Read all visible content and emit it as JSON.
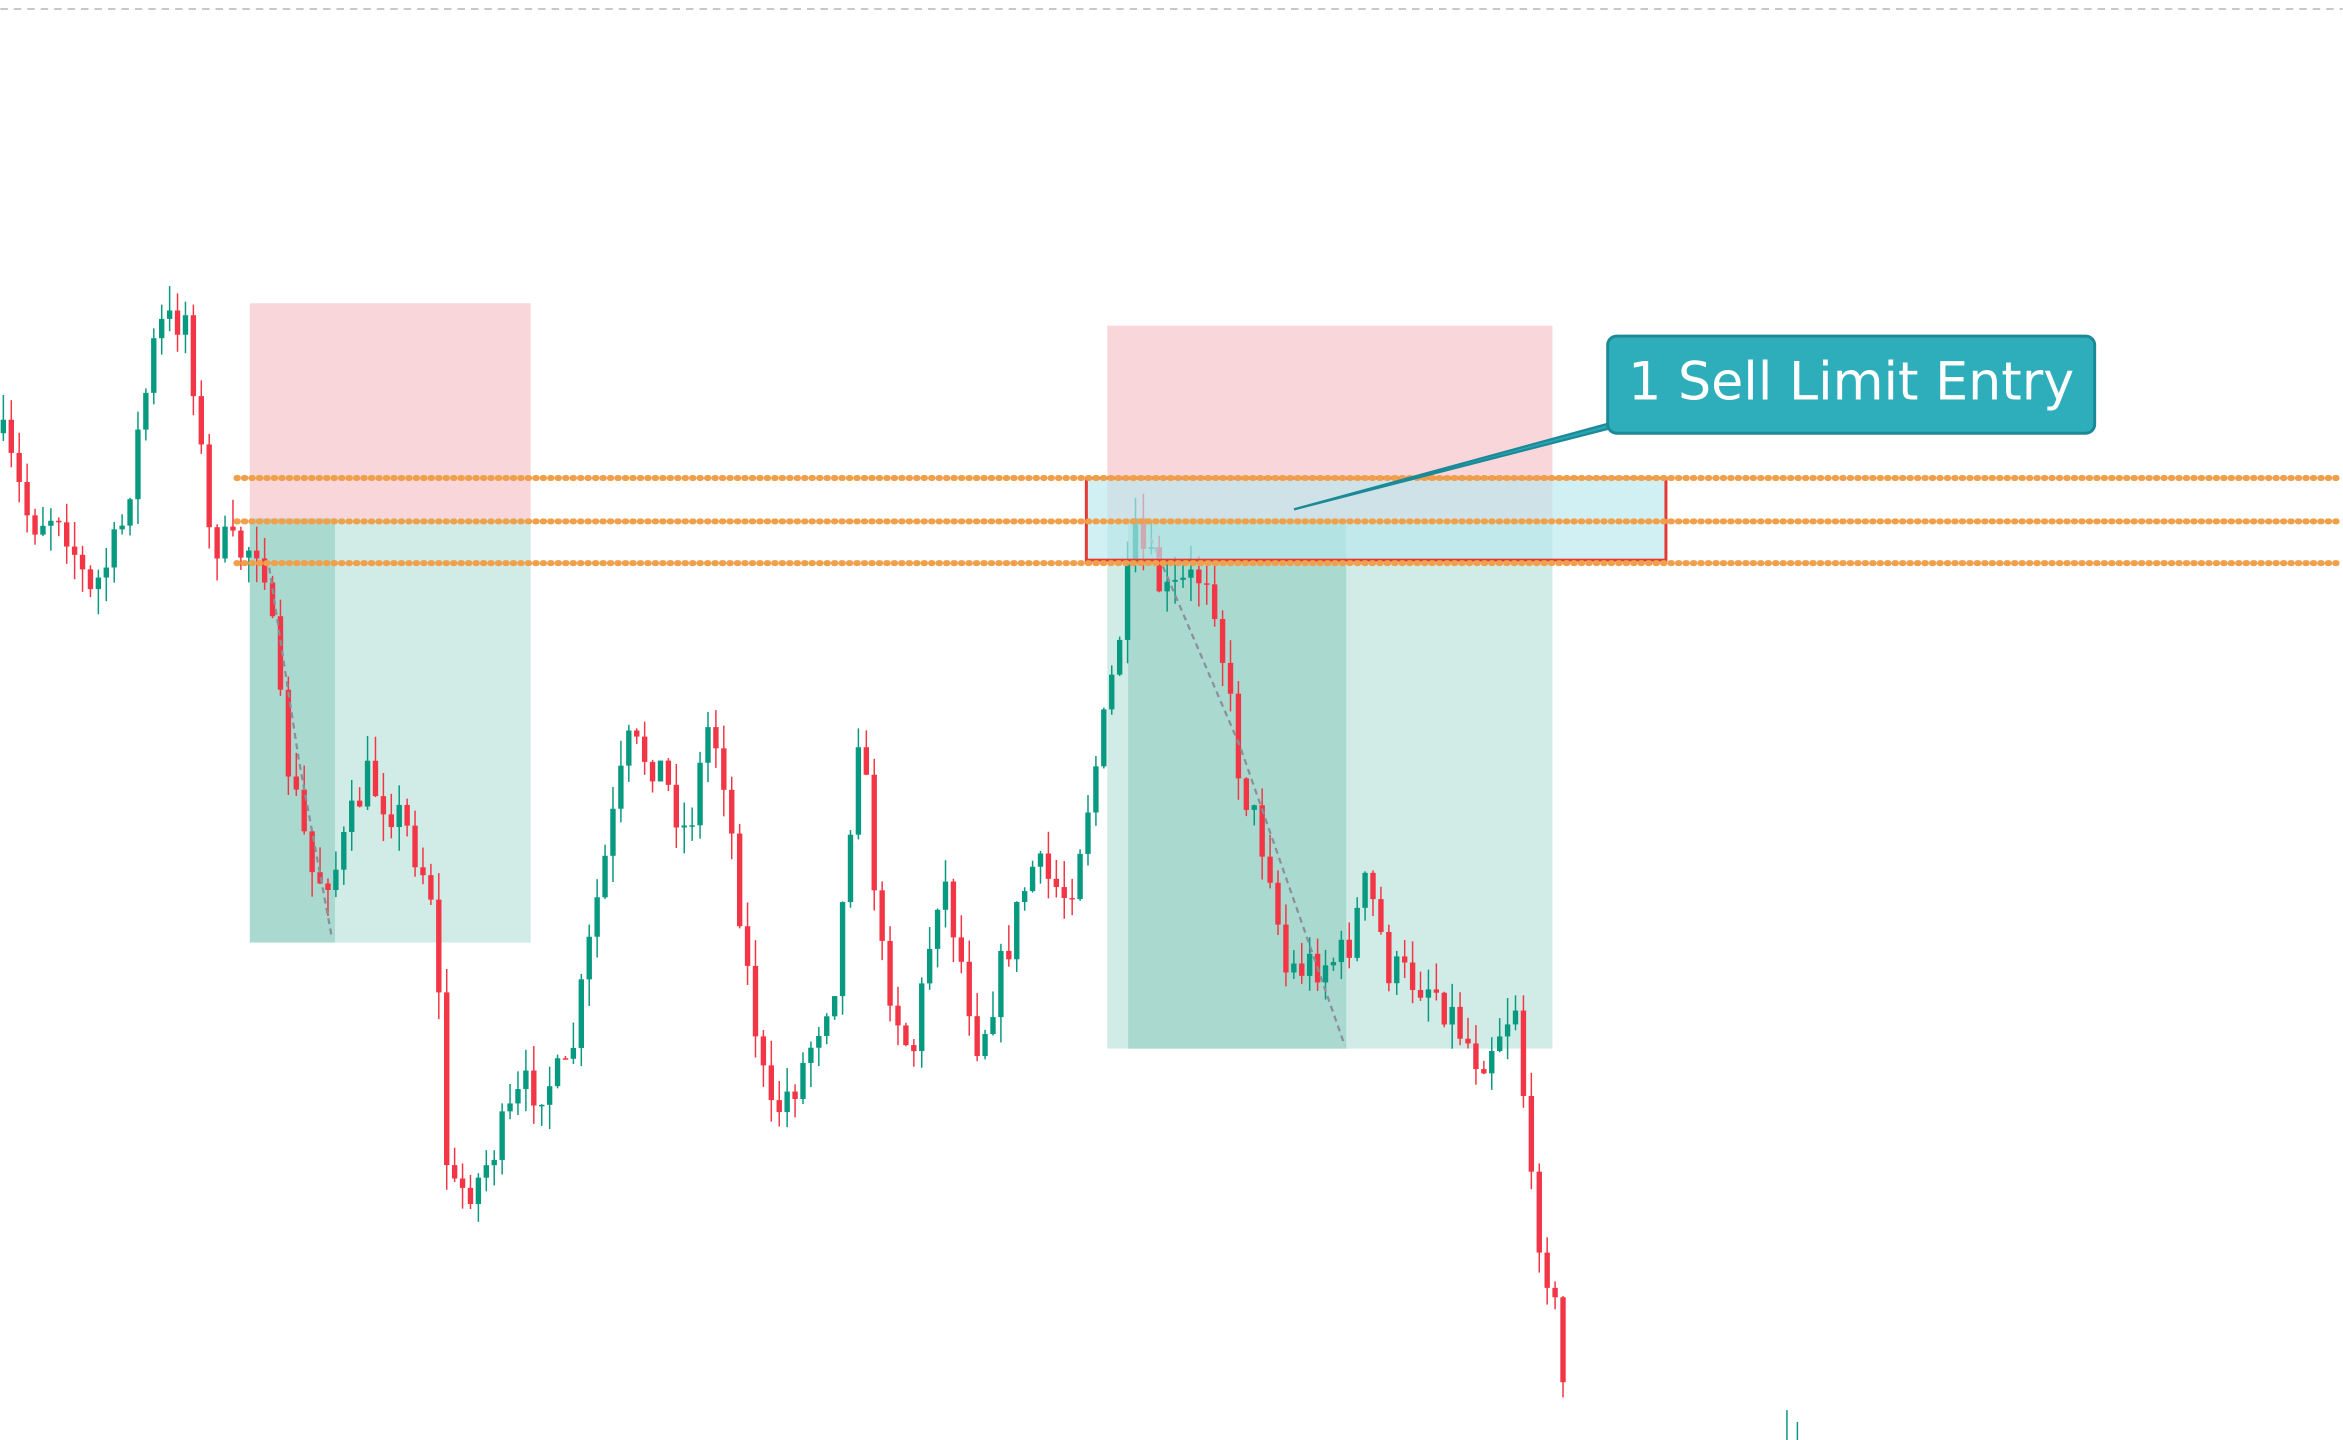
{
  "annotation": {
    "label": "1 Sell Limit Entry"
  }
}
